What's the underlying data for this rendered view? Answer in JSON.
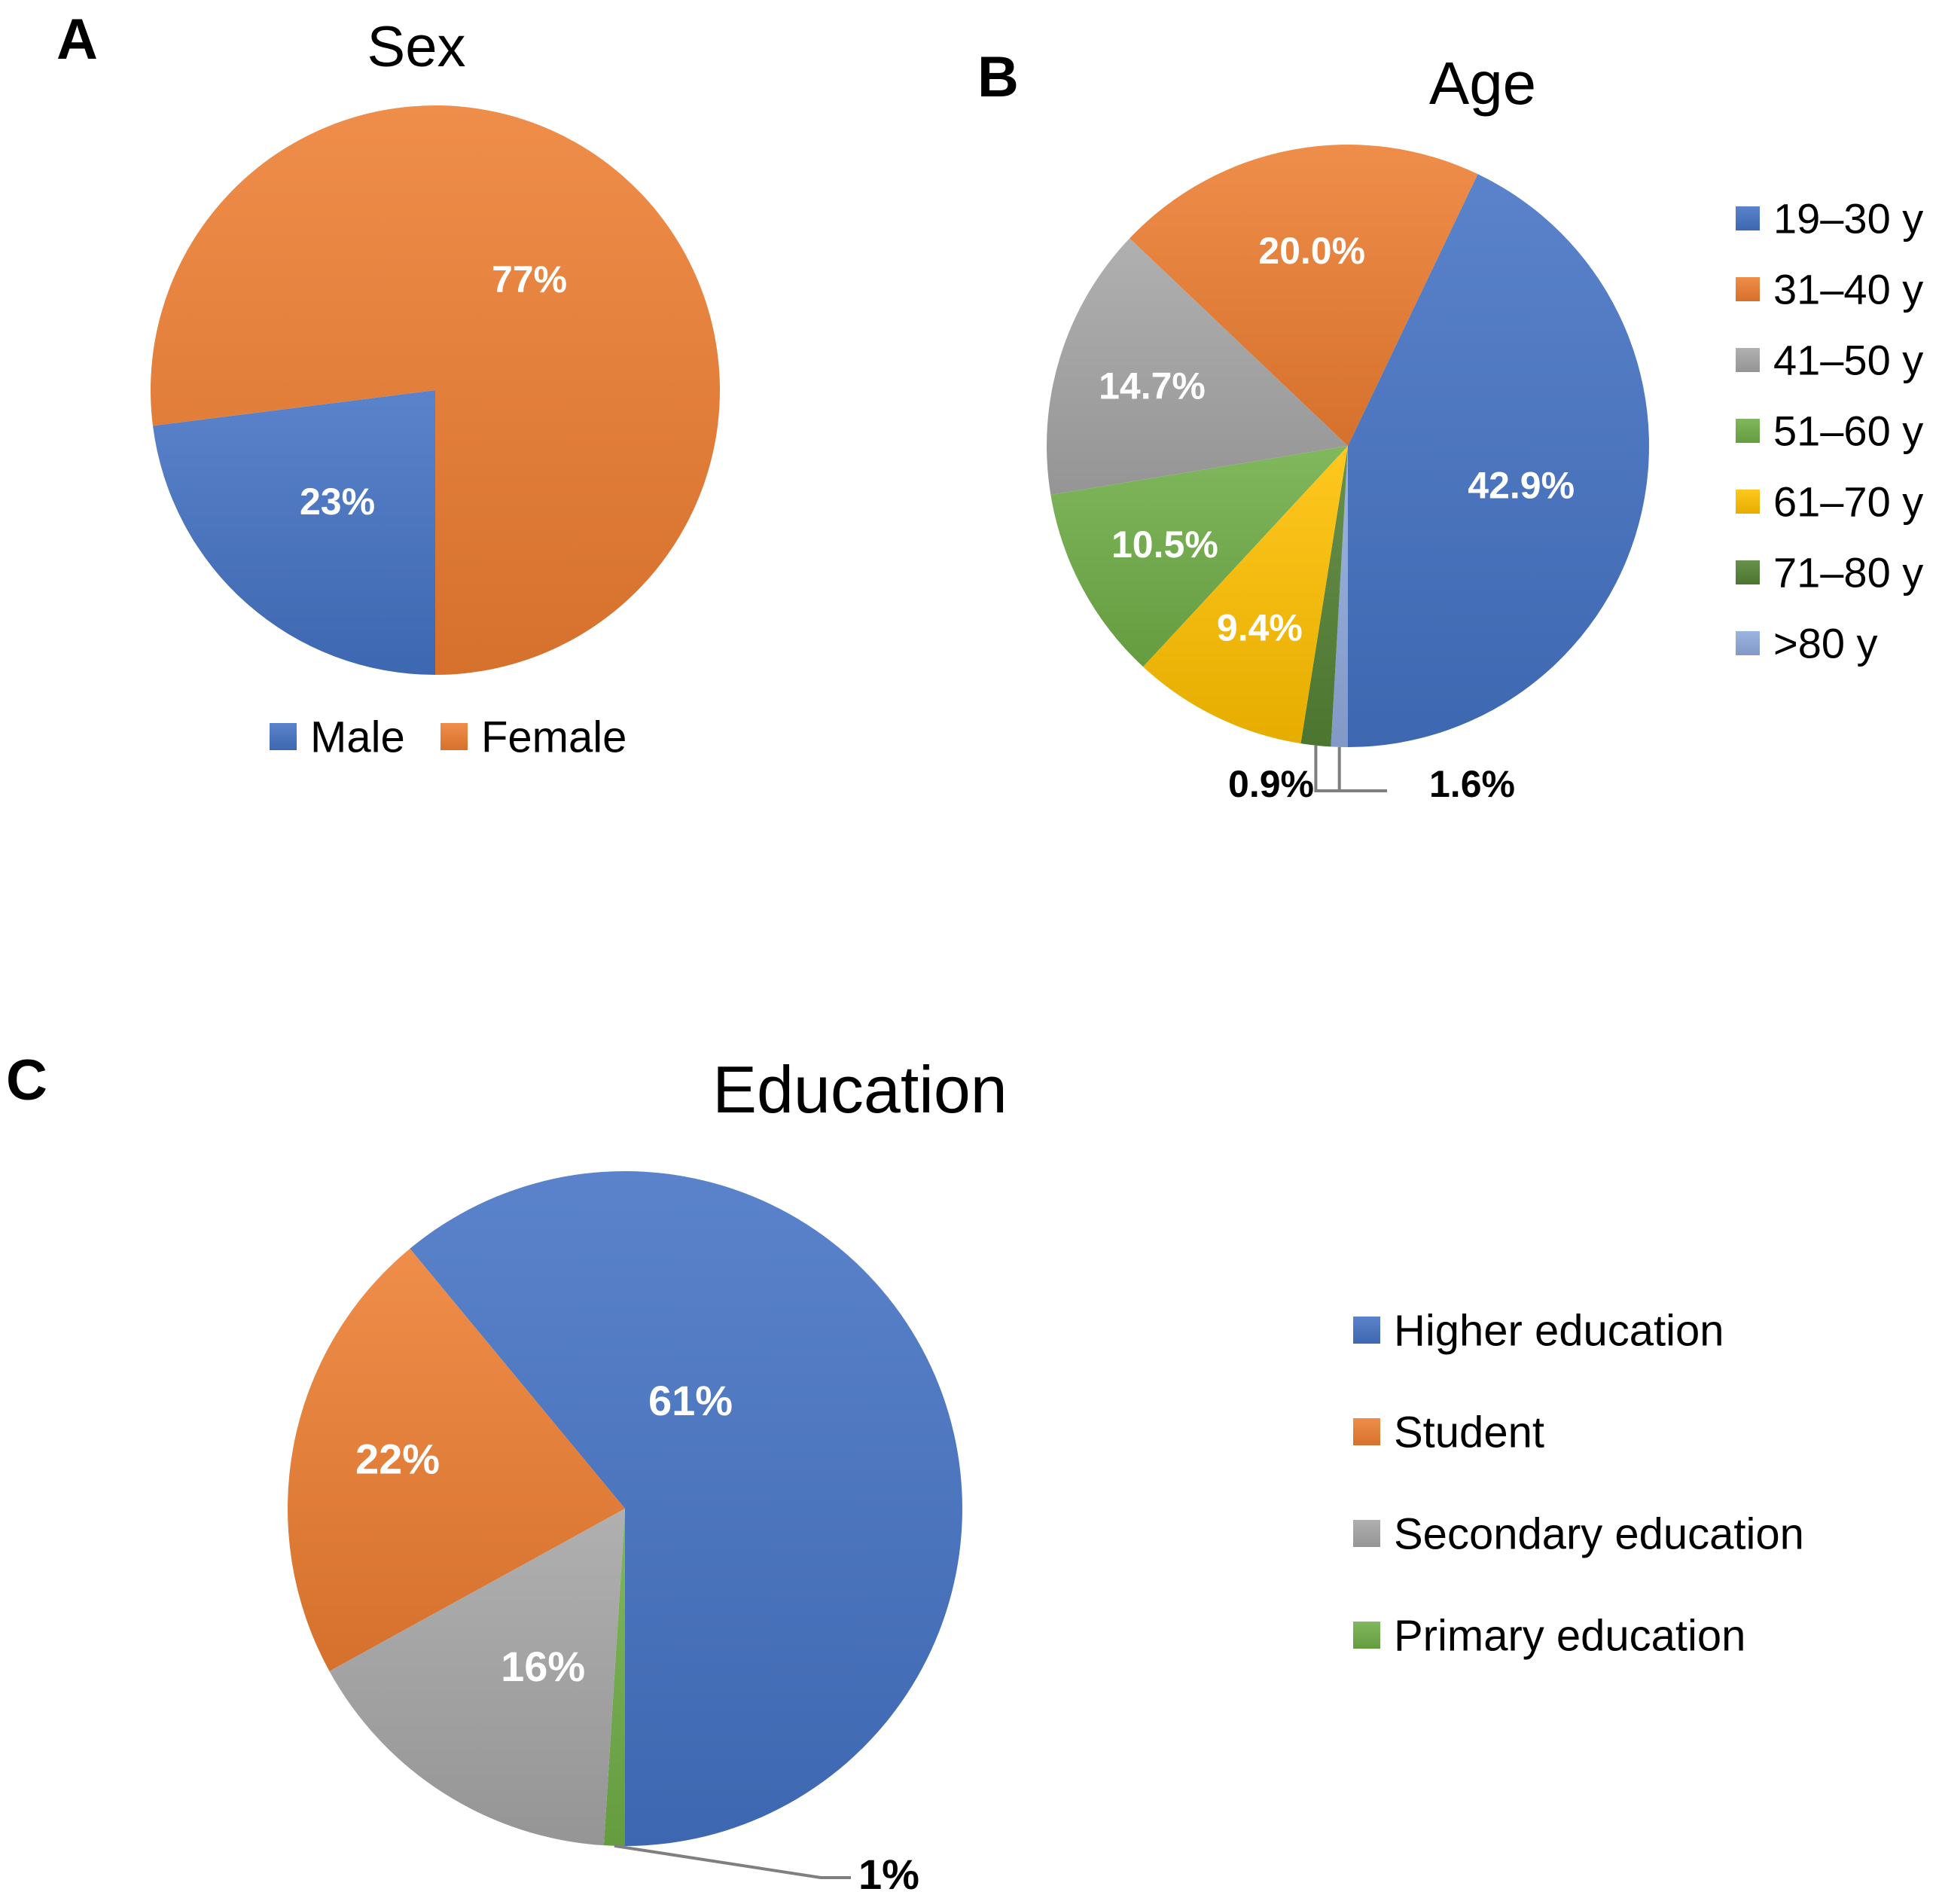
{
  "colors": {
    "blue": "#4472C4",
    "orange": "#ED7D31",
    "gray": "#A5A5A5",
    "yellow": "#FFC000",
    "green": "#70AD47",
    "dark_green": "#548235",
    "light_blue": "#8FAADC",
    "label_text": "#FFFFFF",
    "dark_text": "#000000",
    "leader": "#7F7F7F"
  },
  "chart_data": [
    {
      "panel": "A",
      "type": "pie",
      "title": "Sex",
      "legend_position": "bottom",
      "categories": [
        "Male",
        "Female"
      ],
      "values": [
        23,
        77
      ],
      "labels": [
        "23%",
        "77%"
      ],
      "color_keys": [
        "blue",
        "orange"
      ]
    },
    {
      "panel": "B",
      "type": "pie",
      "title": "Age",
      "legend_position": "right",
      "categories": [
        "19–30 y",
        "31–40 y",
        "41–50 y",
        "51–60 y",
        "61–70 y",
        "71–80 y",
        ">80 y"
      ],
      "values": [
        42.9,
        20.0,
        14.7,
        10.5,
        9.4,
        1.6,
        0.9
      ],
      "labels": [
        "42.9%",
        "20.0%",
        "14.7%",
        "10.5%",
        "9.4%",
        "1.6%",
        "0.9%"
      ],
      "color_keys": [
        "blue",
        "orange",
        "gray",
        "green",
        "yellow",
        "dark_green",
        "light_blue"
      ]
    },
    {
      "panel": "C",
      "type": "pie",
      "title": "Education",
      "legend_position": "right",
      "categories": [
        "Higher education",
        "Student",
        "Secondary education",
        "Primary education"
      ],
      "values": [
        61,
        22,
        16,
        1
      ],
      "labels": [
        "61%",
        "22%",
        "16%",
        "1%"
      ],
      "color_keys": [
        "blue",
        "orange",
        "gray",
        "green"
      ]
    }
  ]
}
